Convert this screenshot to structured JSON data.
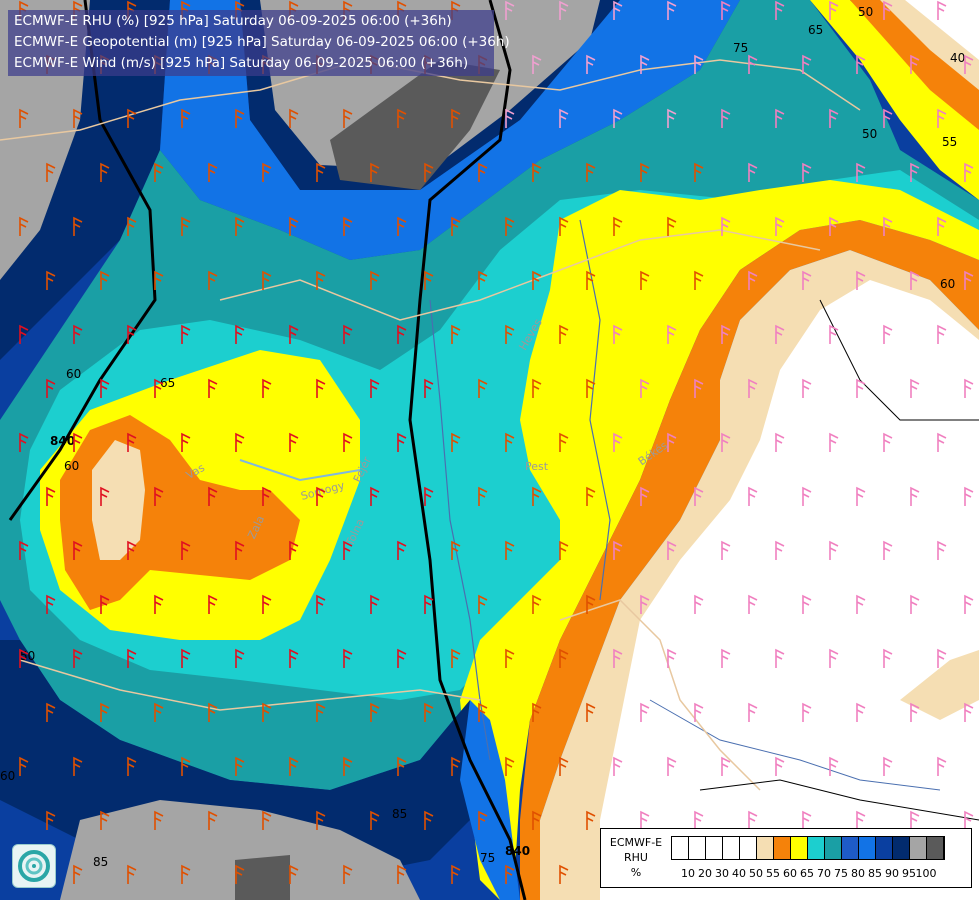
{
  "title_lines": [
    "ECMWF-E RHU (%) [925 hPa] Saturday 06-09-2025 06:00 (+36h)",
    "ECMWF-E Geopotential (m) [925 hPa] Saturday 06-09-2025 06:00 (+36h)",
    "ECMWF-E Wind (m/s) [925 hPa] Saturday 06-09-2025 06:00 (+36h)"
  ],
  "legend": {
    "title_lines": [
      "ECMWF-E",
      "RHU",
      "%"
    ],
    "colors": [
      "#ffffff",
      "#ffffff",
      "#ffffff",
      "#ffffff",
      "#ffffff",
      "#f5deb3",
      "#f5820a",
      "#ffff00",
      "#1ccfcf",
      "#1a9fa5",
      "#1e5bc8",
      "#1273e6",
      "#0a3fa0",
      "#022b6e",
      "#a5a5a5",
      "#5a5a5a"
    ],
    "ticks": [
      "10",
      "20",
      "30",
      "40",
      "50",
      "55",
      "60",
      "65",
      "70",
      "75",
      "80",
      "85",
      "90",
      "95",
      "100"
    ]
  },
  "contour_labels": [
    "50",
    "65",
    "75",
    "40",
    "50",
    "55",
    "60",
    "65",
    "60",
    "840",
    "60",
    "85",
    "85",
    "75",
    "60",
    "840",
    "50"
  ],
  "region_labels": [
    "Pest",
    "Heves",
    "Békés",
    "Fejér",
    "Somogy",
    "Zala",
    "Vas",
    "Tolna"
  ]
}
